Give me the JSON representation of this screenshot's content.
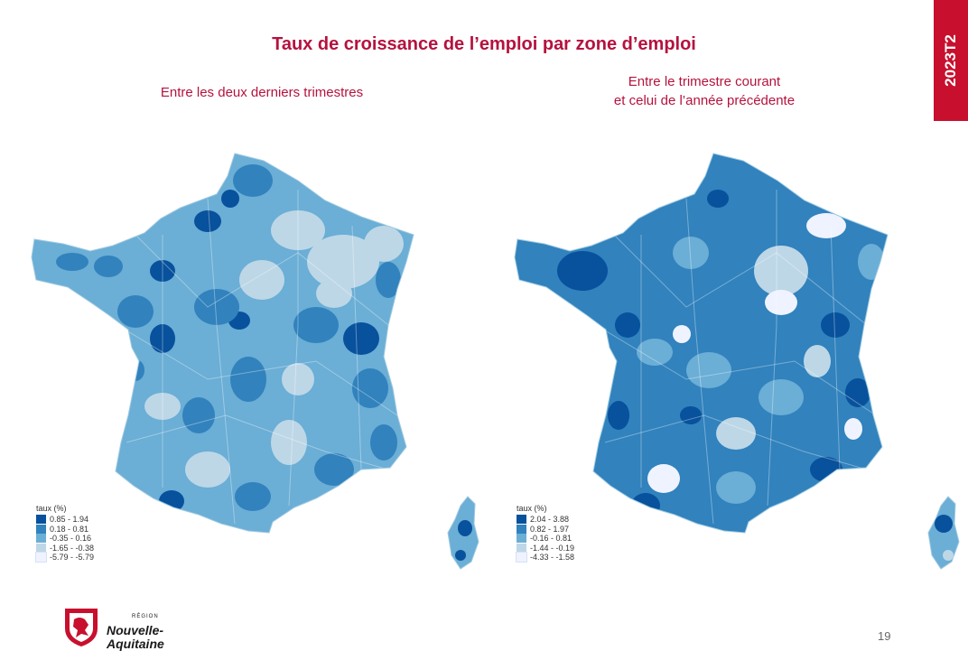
{
  "title": "Taux de croissance de l’emploi par zone d’emploi",
  "badge": "2023T2",
  "left_panel": {
    "subtitle": "Entre les deux derniers trimestres",
    "legend": {
      "title": "taux (%)",
      "classes": [
        "0.85 - 1.94",
        "0.18 - 0.81",
        "-0.35 - 0.16",
        "-1.65 - -0.38",
        "-5.79 - -5.79"
      ]
    }
  },
  "right_panel": {
    "subtitle_line1": "Entre le trimestre courant",
    "subtitle_line2": "et celui de l’année précédente",
    "legend": {
      "title": "taux (%)",
      "classes": [
        "2.04 - 3.88",
        "0.82 - 1.97",
        "-0.16 - 0.81",
        "-1.44 - -0.19",
        "-4.33 - -1.58"
      ]
    }
  },
  "palette": [
    "#08519c",
    "#3182bd",
    "#6baed6",
    "#bdd7e7",
    "#eff3ff"
  ],
  "logo": {
    "region_small": "RÉGION",
    "name_line1": "Nouvelle-",
    "name_line2": "Aquitaine"
  },
  "page_number": "19"
}
